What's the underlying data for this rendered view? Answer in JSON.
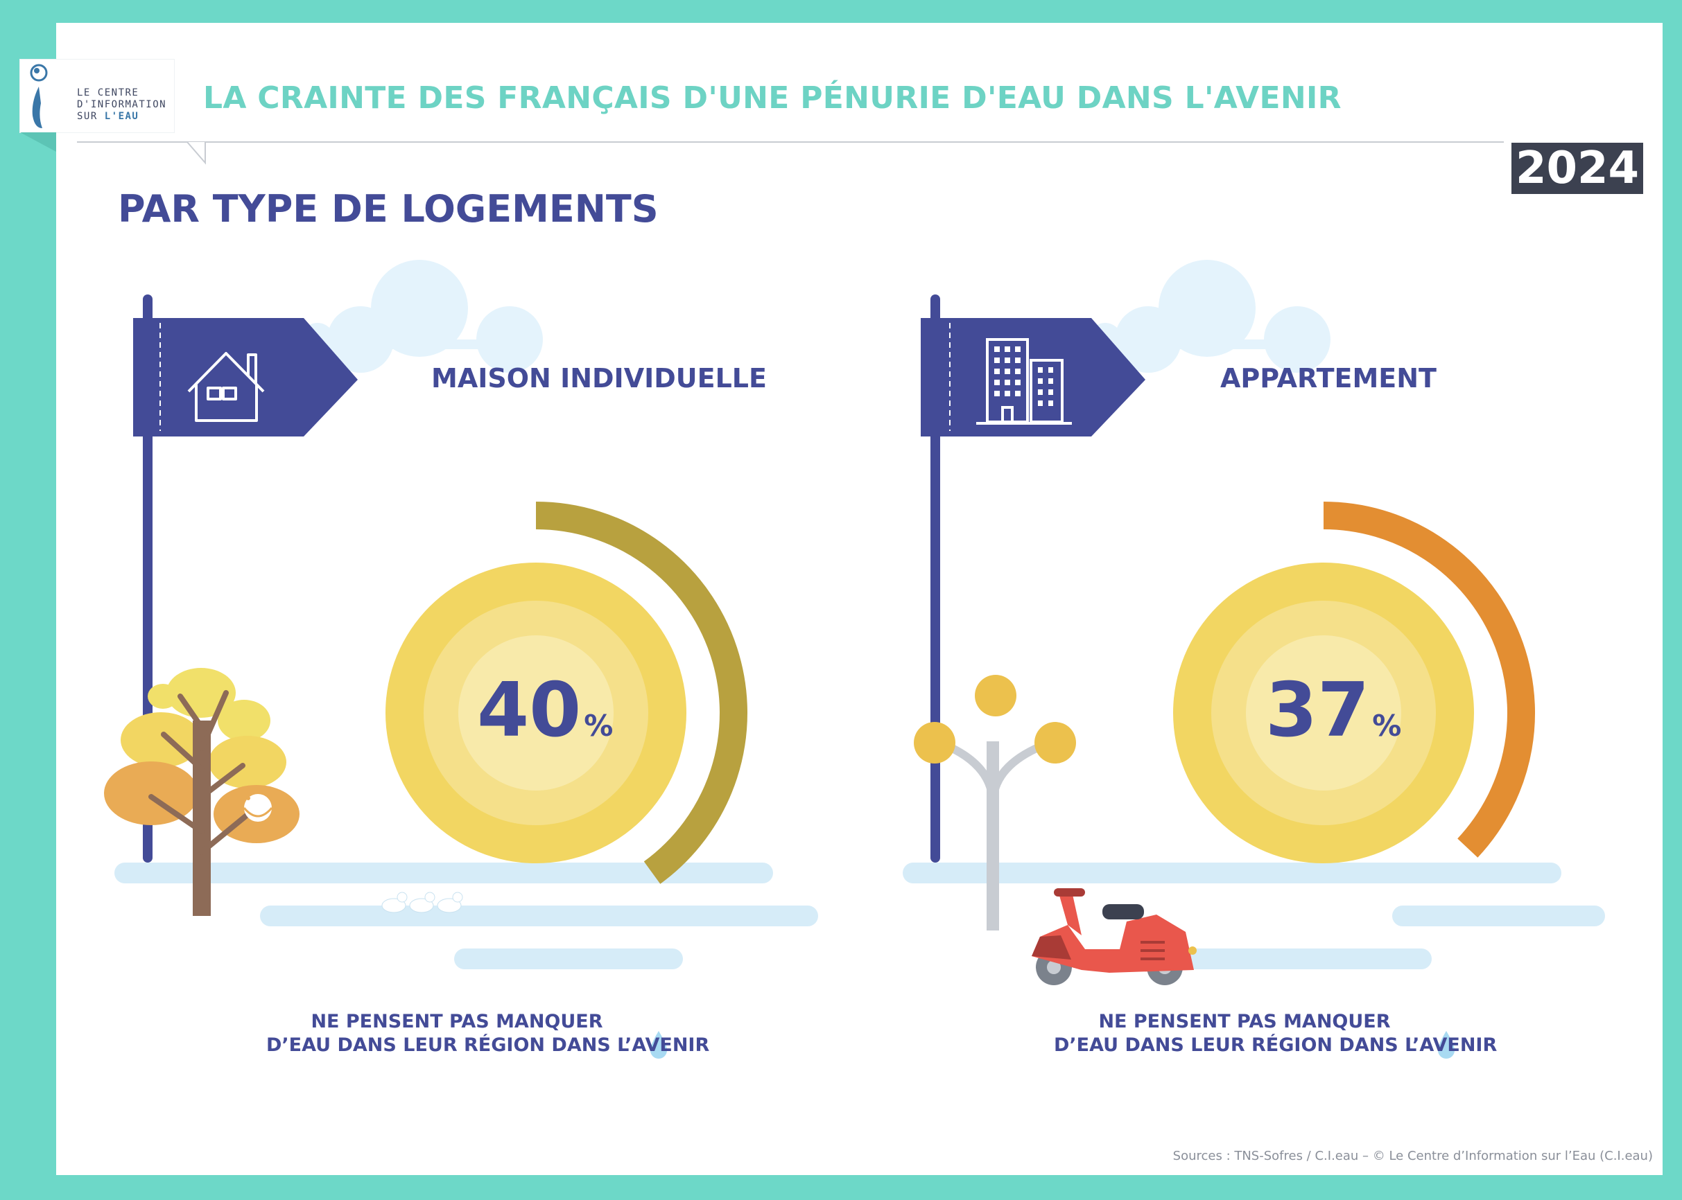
{
  "header": {
    "logo_lines": [
      "LE CENTRE",
      "D'INFORMATION",
      "SUR "
    ],
    "logo_accent": "L'EAU",
    "title": "LA CRAINTE DES FRANÇAIS D'UNE PÉNURIE D'EAU DANS L'AVENIR",
    "year": "2024"
  },
  "section_title": "PAR TYPE DE LOGEMENTS",
  "panels": [
    {
      "category": "MAISON INDIVIDUELLE",
      "icon": "house-icon",
      "percent_number": "40",
      "percent_symbol": "%",
      "caption_line1": "NE PENSENT PAS MANQUER",
      "caption_line2": "D’EAU DANS LEUR RÉGION DANS L’AVENIR",
      "arc_color": "#b8a13f"
    },
    {
      "category": "APPARTEMENT",
      "icon": "building-icon",
      "percent_number": "37",
      "percent_symbol": "%",
      "caption_line1": "NE PENSENT PAS MANQUER",
      "caption_line2": "D’EAU DANS LEUR RÉGION DANS L’AVENIR",
      "arc_color": "#e38e32"
    }
  ],
  "sources": "Sources : TNS-Sofres / C.I.eau – © Le Centre d’Information sur l’Eau (C.I.eau)",
  "colors": {
    "frame": "#6dd8c8",
    "navy": "#434b97",
    "title_teal": "#6dd3c4",
    "sun_outer": "#f2d662",
    "sun_mid": "#f5e08a",
    "sun_inner": "#f8eaaa"
  },
  "chart_data": [
    {
      "type": "pie",
      "title": "MAISON INDIVIDUELLE",
      "categories": [
        "NE PENSENT PAS MANQUER D’EAU DANS LEUR RÉGION DANS L’AVENIR"
      ],
      "values": [
        40
      ],
      "unit": "%"
    },
    {
      "type": "pie",
      "title": "APPARTEMENT",
      "categories": [
        "NE PENSENT PAS MANQUER D’EAU DANS LEUR RÉGION DANS L’AVENIR"
      ],
      "values": [
        37
      ],
      "unit": "%"
    }
  ]
}
